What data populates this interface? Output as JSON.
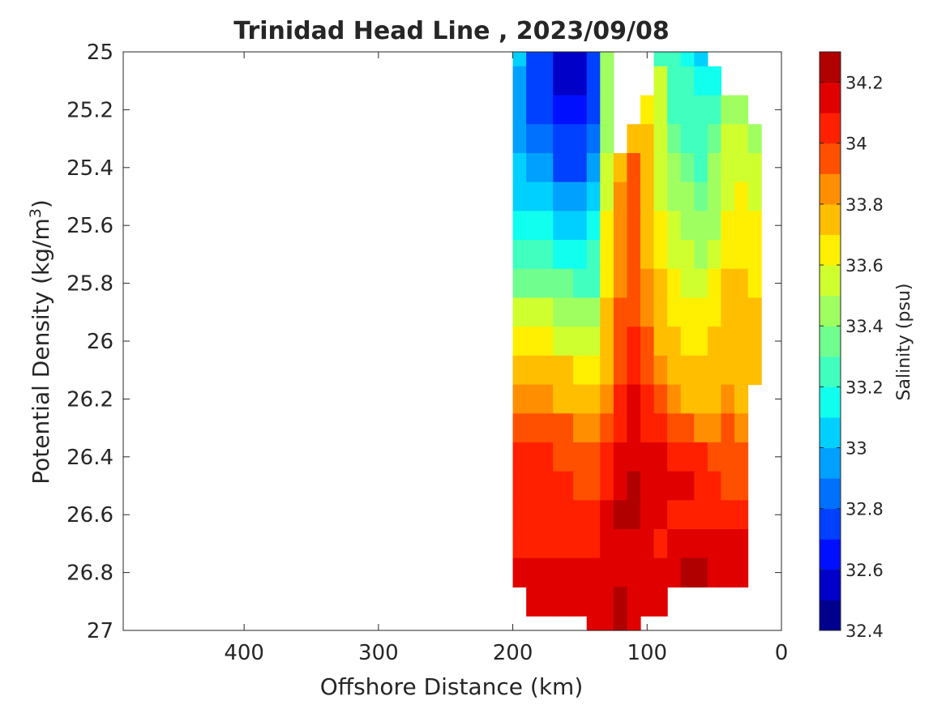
{
  "chart_data": {
    "type": "heatmap",
    "title": "Trinidad Head Line , 2023/09/08",
    "xlabel": "Offshore Distance (km)",
    "ylabel": "Potential Density (kg/m",
    "ylabel_sup": "3",
    "ylabel_close": ")",
    "colorbar_label": "Salinity (psu)",
    "xlim": [
      490,
      0
    ],
    "ylim": [
      25,
      27
    ],
    "y_reversed": true,
    "x_reversed": true,
    "x_ticks": [
      400,
      300,
      200,
      100,
      0
    ],
    "y_ticks": [
      25,
      25.2,
      25.4,
      25.6,
      25.8,
      26,
      26.2,
      26.4,
      26.6,
      26.8,
      27
    ],
    "y_tick_labels": [
      "25",
      "25.2",
      "25.4",
      "25.6",
      "25.8",
      "26",
      "26.2",
      "26.4",
      "26.6",
      "26.8",
      "27"
    ],
    "colorbar_range": [
      32.4,
      34.3
    ],
    "colorbar_ticks": [
      32.4,
      32.6,
      32.8,
      33,
      33.2,
      33.4,
      33.6,
      33.8,
      34,
      34.2
    ],
    "colorbar_tick_labels": [
      "32.4",
      "32.6",
      "32.8",
      "33",
      "33.2",
      "33.4",
      "33.6",
      "33.8",
      "34",
      "34.2"
    ],
    "colormap": [
      "#00008f",
      "#0000c8",
      "#0010ff",
      "#0040ff",
      "#0070ff",
      "#00a0ff",
      "#00d0ff",
      "#10ffef",
      "#40ffbf",
      "#70ff8f",
      "#a0ff60",
      "#d0ff30",
      "#ffef00",
      "#ffbf00",
      "#ff8f00",
      "#ff5000",
      "#ff2000",
      "#e00000",
      "#b00000"
    ],
    "stations_x": [
      200,
      180,
      160,
      150,
      140,
      130,
      120,
      110,
      100,
      90,
      80,
      70,
      60,
      50,
      40,
      30,
      20,
      10
    ],
    "density_y": [
      25,
      25.1,
      25.2,
      25.3,
      25.4,
      25.5,
      25.6,
      25.7,
      25.8,
      25.9,
      26,
      26.1,
      26.2,
      26.3,
      26.4,
      26.5,
      26.6,
      26.7,
      26.8,
      26.9,
      27
    ],
    "salinity_grid": [
      [
        33.0,
        32.8,
        32.55,
        32.55,
        32.75,
        33.4,
        null,
        null,
        null,
        33.3,
        33.2,
        33.1,
        33.05,
        null,
        null,
        null,
        null,
        null
      ],
      [
        32.95,
        32.75,
        32.55,
        32.55,
        32.75,
        33.4,
        null,
        null,
        null,
        33.5,
        33.3,
        33.2,
        33.1,
        33.1,
        null,
        null,
        null,
        null
      ],
      [
        32.95,
        32.8,
        32.6,
        32.6,
        32.8,
        33.45,
        null,
        null,
        33.6,
        33.5,
        33.3,
        33.25,
        33.2,
        33.3,
        33.4,
        33.45,
        null,
        null
      ],
      [
        32.95,
        32.85,
        32.7,
        32.7,
        32.85,
        33.45,
        null,
        33.8,
        33.7,
        33.5,
        33.35,
        33.3,
        33.25,
        33.35,
        33.5,
        33.5,
        33.4,
        null
      ],
      [
        33.0,
        32.9,
        32.8,
        32.8,
        32.9,
        33.5,
        33.8,
        33.9,
        33.75,
        33.55,
        33.4,
        33.35,
        33.3,
        33.4,
        33.5,
        33.55,
        33.5,
        null
      ],
      [
        33.05,
        33.0,
        32.95,
        32.9,
        33.0,
        33.55,
        33.85,
        33.9,
        33.75,
        33.55,
        33.45,
        33.4,
        33.35,
        33.4,
        33.55,
        33.6,
        33.55,
        null
      ],
      [
        33.15,
        33.1,
        33.05,
        33.05,
        33.1,
        33.6,
        33.85,
        33.9,
        33.8,
        33.6,
        33.5,
        33.45,
        33.4,
        33.45,
        33.6,
        33.65,
        33.6,
        null
      ],
      [
        33.25,
        33.2,
        33.15,
        33.15,
        33.2,
        33.65,
        33.85,
        33.9,
        33.8,
        33.65,
        33.55,
        33.5,
        33.45,
        33.55,
        33.65,
        33.65,
        33.6,
        null
      ],
      [
        33.35,
        33.35,
        33.35,
        33.3,
        33.3,
        33.65,
        33.85,
        33.95,
        33.85,
        33.7,
        33.6,
        33.55,
        33.5,
        33.6,
        33.7,
        33.7,
        33.65,
        null
      ],
      [
        33.5,
        33.5,
        33.45,
        33.45,
        33.45,
        33.7,
        33.9,
        33.95,
        33.85,
        33.75,
        33.65,
        33.6,
        33.6,
        33.65,
        33.75,
        33.75,
        33.7,
        null
      ],
      [
        33.65,
        33.6,
        33.55,
        33.55,
        33.55,
        33.75,
        33.9,
        34.0,
        33.9,
        33.8,
        33.7,
        33.65,
        33.65,
        33.7,
        33.8,
        33.8,
        33.7,
        null
      ],
      [
        33.75,
        33.75,
        33.7,
        33.65,
        33.65,
        33.8,
        33.95,
        34.05,
        33.95,
        33.85,
        33.75,
        33.7,
        33.7,
        33.75,
        33.8,
        33.8,
        33.7,
        null
      ],
      [
        33.85,
        33.85,
        33.8,
        33.75,
        33.75,
        33.85,
        34.0,
        34.1,
        34.0,
        33.95,
        33.85,
        33.8,
        33.75,
        33.8,
        33.85,
        33.8,
        null,
        null
      ],
      [
        33.95,
        33.95,
        33.9,
        33.85,
        33.85,
        33.95,
        34.05,
        34.1,
        34.05,
        34.0,
        33.95,
        33.9,
        33.85,
        33.85,
        33.9,
        33.85,
        null,
        null
      ],
      [
        34.0,
        34.0,
        33.95,
        33.9,
        33.9,
        34.0,
        34.1,
        34.15,
        34.15,
        34.1,
        34.05,
        34.0,
        34.0,
        33.95,
        33.95,
        33.9,
        null,
        null
      ],
      [
        34.0,
        34.0,
        34.0,
        33.95,
        33.95,
        34.05,
        34.15,
        34.2,
        34.15,
        34.1,
        34.1,
        34.1,
        34.05,
        34.0,
        33.95,
        33.9,
        null,
        null
      ],
      [
        34.0,
        34.0,
        34.0,
        34.0,
        34.0,
        34.15,
        34.25,
        34.25,
        34.15,
        34.1,
        34.05,
        34.05,
        34.05,
        34.05,
        34.0,
        34.0,
        null,
        null
      ],
      [
        34.05,
        34.05,
        34.05,
        34.05,
        34.05,
        34.15,
        34.15,
        34.1,
        34.1,
        34.05,
        34.1,
        34.1,
        34.1,
        34.1,
        34.1,
        34.1,
        null,
        null
      ],
      [
        34.1,
        34.1,
        34.1,
        34.15,
        34.15,
        34.15,
        34.1,
        34.1,
        34.1,
        34.15,
        34.15,
        34.2,
        34.2,
        34.15,
        34.1,
        34.1,
        null,
        null
      ],
      [
        null,
        34.1,
        34.1,
        34.1,
        34.15,
        34.15,
        34.2,
        34.15,
        34.1,
        34.1,
        null,
        null,
        null,
        null,
        null,
        null,
        null,
        null
      ],
      [
        null,
        null,
        null,
        null,
        34.15,
        34.15,
        34.2,
        34.15,
        null,
        null,
        null,
        null,
        null,
        null,
        null,
        null,
        null,
        null
      ]
    ]
  }
}
